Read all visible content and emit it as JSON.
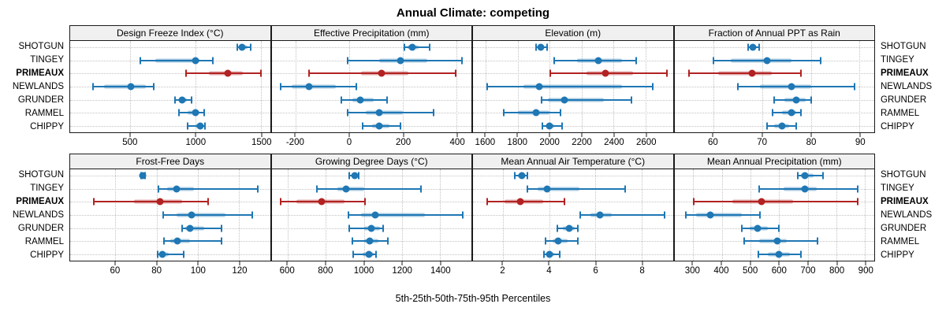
{
  "chart_data": {
    "type": "scatter",
    "variant": "trellis-dotplot-percentile-intervals",
    "title": "Annual Climate: competing",
    "caption": "5th-25th-50th-75th-95th Percentiles",
    "percentiles": [
      "5th",
      "25th",
      "50th",
      "75th",
      "95th"
    ],
    "sites": [
      {
        "name": "SHOTGUN",
        "bold": false
      },
      {
        "name": "TINGEY",
        "bold": false
      },
      {
        "name": "PRIMEAUX",
        "bold": true
      },
      {
        "name": "NEWLANDS",
        "bold": false
      },
      {
        "name": "GRUNDER",
        "bold": false
      },
      {
        "name": "RAMMEL",
        "bold": false
      },
      {
        "name": "CHIPPY",
        "bold": false
      }
    ],
    "highlight_site": "PRIMEAUX",
    "colors": {
      "default": "#1f77b4",
      "highlight": "#b22222",
      "grid": "#c2c2c2",
      "strip_bg": "#f0f0f0",
      "border": "#1a1a1a"
    },
    "layout": {
      "rows": [
        [
          0,
          1,
          2,
          3
        ],
        [
          4,
          5,
          6,
          7
        ]
      ],
      "grid": "dotted",
      "legend": "none"
    },
    "panels": [
      {
        "title": "Design Freeze Index (°C)",
        "domain": [
          40,
          1570
        ],
        "ticks": [
          500,
          1000,
          1500
        ],
        "values": {
          "SHOTGUN": [
            1320,
            1340,
            1358,
            1400,
            1425
          ],
          "TINGEY": [
            580,
            690,
            1000,
            1030,
            1135
          ],
          "PRIMEAUX": [
            930,
            1100,
            1245,
            1360,
            1500
          ],
          "NEWLANDS": [
            215,
            300,
            505,
            620,
            680
          ],
          "GRUNDER": [
            843,
            870,
            900,
            935,
            970
          ],
          "RAMMEL": [
            870,
            940,
            1000,
            1030,
            1065
          ],
          "CHIPPY": [
            940,
            1000,
            1035,
            1055,
            1075
          ]
        }
      },
      {
        "title": "Effective Precipitation (mm)",
        "domain": [
          -290,
          455
        ],
        "ticks": [
          -200,
          0,
          200,
          400
        ],
        "values": {
          "SHOTGUN": [
            205,
            218,
            235,
            258,
            300
          ],
          "TINGEY": [
            -5,
            110,
            190,
            290,
            420
          ],
          "PRIMEAUX": [
            -150,
            45,
            120,
            220,
            395
          ],
          "NEWLANDS": [
            -255,
            -215,
            -150,
            -50,
            25
          ],
          "GRUNDER": [
            -30,
            10,
            40,
            90,
            140
          ],
          "RAMMEL": [
            -5,
            60,
            110,
            200,
            315
          ],
          "CHIPPY": [
            50,
            85,
            112,
            150,
            190
          ]
        }
      },
      {
        "title": "Elevation (m)",
        "domain": [
          1520,
          2770
        ],
        "ticks": [
          1600,
          1800,
          2000,
          2200,
          2400,
          2600
        ],
        "values": {
          "SHOTGUN": [
            1913,
            1930,
            1945,
            1962,
            1985
          ],
          "TINGEY": [
            2030,
            2170,
            2305,
            2450,
            2540
          ],
          "PRIMEAUX": [
            2005,
            2230,
            2350,
            2520,
            2735
          ],
          "NEWLANDS": [
            1610,
            1835,
            1935,
            2450,
            2645
          ],
          "GRUNDER": [
            1950,
            1990,
            2090,
            2340,
            2510
          ],
          "RAMMEL": [
            1710,
            1800,
            1913,
            2000,
            2065
          ],
          "CHIPPY": [
            1955,
            1980,
            2000,
            2030,
            2075
          ]
        }
      },
      {
        "title": "Fraction of Annual PPT as Rain",
        "domain": [
          52,
          93
        ],
        "ticks": [
          60,
          70,
          80,
          90
        ],
        "values": {
          "SHOTGUN": [
            67.2,
            67.7,
            68.1,
            68.7,
            69.4
          ],
          "TINGEY": [
            60,
            63.5,
            71,
            76,
            82
          ],
          "PRIMEAUX": [
            55,
            61,
            68,
            72,
            78
          ],
          "NEWLANDS": [
            65,
            69.5,
            76,
            80,
            89
          ],
          "GRUNDER": [
            72.4,
            74.5,
            77,
            79,
            80
          ],
          "RAMMEL": [
            72.2,
            74,
            76,
            77,
            78
          ],
          "CHIPPY": [
            71,
            72.5,
            74,
            75.5,
            77
          ]
        }
      },
      {
        "title": "Frost-Free Days",
        "domain": [
          38,
          135
        ],
        "ticks": [
          60,
          80,
          100,
          120
        ],
        "values": {
          "SHOTGUN": [
            72.3,
            72.8,
            73.2,
            73.7,
            74.2
          ],
          "TINGEY": [
            81,
            85,
            89.5,
            98,
            129
          ],
          "PRIMEAUX": [
            49.5,
            69,
            81.5,
            92.5,
            105
          ],
          "NEWLANDS": [
            83,
            89.5,
            97,
            113.5,
            126.5
          ],
          "GRUNDER": [
            92.5,
            94,
            96,
            103,
            111.5
          ],
          "RAMMEL": [
            83.5,
            86.5,
            90,
            96,
            111.5
          ],
          "CHIPPY": [
            80.5,
            81.5,
            82.7,
            86,
            93
          ]
        }
      },
      {
        "title": "Growing Degree Days (°C)",
        "domain": [
          515,
          1565
        ],
        "ticks": [
          600,
          800,
          1000,
          1200,
          1400
        ],
        "values": {
          "SHOTGUN": [
            922,
            940,
            950,
            962,
            972
          ],
          "TINGEY": [
            755,
            860,
            905,
            1000,
            1300
          ],
          "PRIMEAUX": [
            562,
            645,
            778,
            900,
            1005
          ],
          "NEWLANDS": [
            920,
            985,
            1060,
            1320,
            1520
          ],
          "GRUNDER": [
            925,
            1000,
            1040,
            1085,
            1100
          ],
          "RAMMEL": [
            940,
            1000,
            1030,
            1075,
            1125
          ],
          "CHIPPY": [
            945,
            995,
            1025,
            1050,
            1065
          ]
        }
      },
      {
        "title": "Mean Annual Air Temperature (°C)",
        "domain": [
          0.7,
          9.35
        ],
        "ticks": [
          2,
          4,
          6,
          8
        ],
        "values": {
          "SHOTGUN": [
            2.5,
            2.65,
            2.8,
            2.95,
            3.05
          ],
          "TINGEY": [
            3.05,
            3.5,
            3.9,
            5.3,
            7.3
          ],
          "PRIMEAUX": [
            1.3,
            2.05,
            2.75,
            3.75,
            4.65
          ],
          "NEWLANDS": [
            5.35,
            5.8,
            6.2,
            6.7,
            9.0
          ],
          "GRUNDER": [
            4.35,
            4.6,
            4.85,
            5.1,
            5.25
          ],
          "RAMMEL": [
            3.85,
            4.15,
            4.4,
            4.8,
            5.25
          ],
          "CHIPPY": [
            3.78,
            3.9,
            4.0,
            4.2,
            4.45
          ]
        }
      },
      {
        "title": "Mean Annual Precipitation (mm)",
        "domain": [
          235,
          932
        ],
        "ticks": [
          300,
          400,
          500,
          600,
          700,
          800,
          900
        ],
        "values": {
          "SHOTGUN": [
            665,
            675,
            690,
            720,
            752
          ],
          "TINGEY": [
            530,
            615,
            690,
            730,
            875
          ],
          "PRIMEAUX": [
            303,
            438,
            538,
            650,
            875
          ],
          "NEWLANDS": [
            276,
            310,
            360,
            470,
            533
          ],
          "GRUNDER": [
            470,
            497,
            525,
            560,
            600
          ],
          "RAMMEL": [
            478,
            530,
            594,
            626,
            735
          ],
          "CHIPPY": [
            528,
            560,
            600,
            638,
            676
          ]
        }
      }
    ]
  }
}
